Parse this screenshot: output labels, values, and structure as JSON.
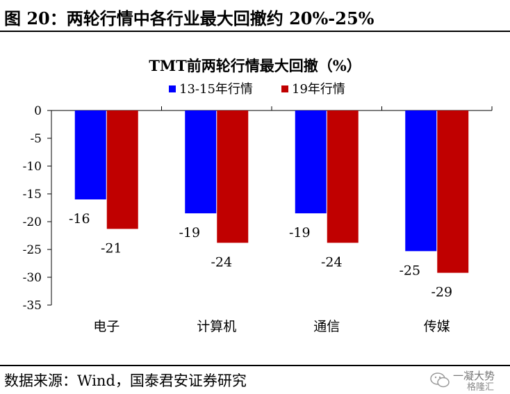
{
  "header": {
    "title": "图 20：两轮行情中各行业最大回撤约 20%-25%"
  },
  "footer": {
    "source": "数据来源：Wind，国泰君安证券研究"
  },
  "watermark": {
    "line1": "一凝大势",
    "line2": "格隆汇"
  },
  "chart_data": {
    "type": "bar",
    "title": "TMT前两轮行情最大回撤（%）",
    "xlabel": "",
    "ylabel": "",
    "categories": [
      "电子",
      "计算机",
      "通信",
      "传媒"
    ],
    "series": [
      {
        "name": "13-15年行情",
        "color": "#0000ff",
        "values": [
          -16,
          -18.5,
          -18.5,
          -25.3
        ],
        "labels": [
          "-16",
          "-19",
          "-19",
          "-25"
        ]
      },
      {
        "name": "19年行情",
        "color": "#c00000",
        "values": [
          -21.3,
          -23.8,
          -23.8,
          -29.2
        ],
        "labels": [
          "-21",
          "-24",
          "-24",
          "-29"
        ]
      }
    ],
    "ylim": [
      -35,
      0
    ],
    "yticks": [
      0,
      -5,
      -10,
      -15,
      -20,
      -25,
      -30,
      -35
    ],
    "grid": false,
    "legend": "top"
  }
}
